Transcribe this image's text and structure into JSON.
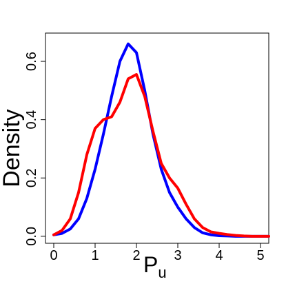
{
  "chart_data": {
    "type": "line",
    "xlabel": "P",
    "xlabel_subscript": "u",
    "ylabel": "Density",
    "x": [
      0,
      0.2,
      0.4,
      0.6,
      0.8,
      1.0,
      1.2,
      1.4,
      1.6,
      1.8,
      2.0,
      2.2,
      2.4,
      2.6,
      2.8,
      3.0,
      3.2,
      3.4,
      3.6,
      3.8,
      4.0,
      4.2,
      4.4,
      4.6,
      4.8,
      5.0,
      5.2
    ],
    "series": [
      {
        "color": "#0000ff",
        "values": [
          0.005,
          0.01,
          0.025,
          0.06,
          0.13,
          0.23,
          0.35,
          0.48,
          0.6,
          0.66,
          0.63,
          0.5,
          0.35,
          0.23,
          0.15,
          0.1,
          0.06,
          0.03,
          0.012,
          0.005,
          0.002,
          0.001,
          0,
          0,
          0,
          0,
          0
        ]
      },
      {
        "color": "#ff0000",
        "values": [
          0.005,
          0.02,
          0.06,
          0.15,
          0.28,
          0.37,
          0.4,
          0.41,
          0.46,
          0.54,
          0.555,
          0.48,
          0.36,
          0.25,
          0.2,
          0.165,
          0.11,
          0.06,
          0.03,
          0.015,
          0.01,
          0.006,
          0.003,
          0.001,
          0,
          0,
          0
        ]
      }
    ],
    "xlim": [
      -0.2,
      5.2
    ],
    "ylim": [
      -0.024,
      0.697
    ],
    "xticks": [
      0,
      1,
      2,
      3,
      4,
      5
    ],
    "yticks": [
      {
        "value": 0,
        "label": "0.0"
      },
      0.2,
      0.4,
      0.6
    ],
    "grid": false
  }
}
